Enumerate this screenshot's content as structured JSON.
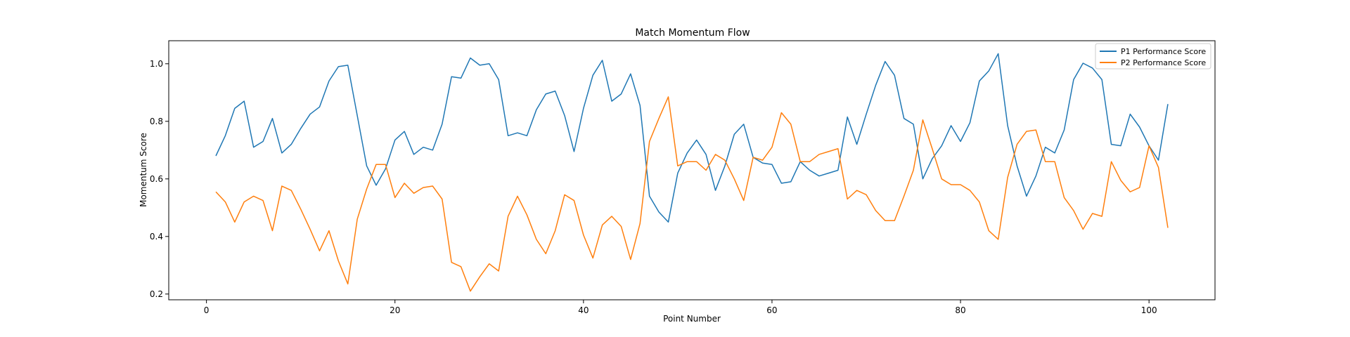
{
  "chart_data": {
    "type": "line",
    "title": "Match Momentum Flow",
    "xlabel": "Point Number",
    "ylabel": "Momentum Score",
    "xlim": [
      -4,
      107
    ],
    "ylim": [
      0.18,
      1.08
    ],
    "xticks": [
      0,
      20,
      40,
      60,
      80,
      100
    ],
    "yticks": [
      0.2,
      0.4,
      0.6,
      0.8,
      1.0
    ],
    "ytick_labels": [
      "0.2",
      "0.4",
      "0.6",
      "0.8",
      "1.0"
    ],
    "grid": false,
    "legend_position": "top-right",
    "x": [
      1,
      2,
      3,
      4,
      5,
      6,
      7,
      8,
      9,
      10,
      11,
      12,
      13,
      14,
      15,
      16,
      17,
      18,
      19,
      20,
      21,
      22,
      23,
      24,
      25,
      26,
      27,
      28,
      29,
      30,
      31,
      32,
      33,
      34,
      35,
      36,
      37,
      38,
      39,
      40,
      41,
      42,
      43,
      44,
      45,
      46,
      47,
      48,
      49,
      50,
      51,
      52,
      53,
      54,
      55,
      56,
      57,
      58,
      59,
      60,
      61,
      62,
      63,
      64,
      65,
      66,
      67,
      68,
      69,
      70,
      71,
      72,
      73,
      74,
      75,
      76,
      77,
      78,
      79,
      80,
      81,
      82,
      83,
      84,
      85,
      86,
      87,
      88,
      89,
      90,
      91,
      92,
      93,
      94,
      95,
      96,
      97,
      98,
      99,
      100,
      101,
      102
    ],
    "series": [
      {
        "name": "P1 Performance Score",
        "color": "#1f77b4",
        "values": [
          0.68,
          0.75,
          0.845,
          0.87,
          0.71,
          0.73,
          0.81,
          0.69,
          0.72,
          0.775,
          0.825,
          0.85,
          0.94,
          0.99,
          0.995,
          0.82,
          0.645,
          0.578,
          0.635,
          0.735,
          0.765,
          0.685,
          0.71,
          0.7,
          0.79,
          0.955,
          0.95,
          1.02,
          0.995,
          1.0,
          0.945,
          0.75,
          0.76,
          0.75,
          0.84,
          0.895,
          0.905,
          0.82,
          0.695,
          0.845,
          0.96,
          1.012,
          0.87,
          0.895,
          0.965,
          0.855,
          0.54,
          0.485,
          0.45,
          0.62,
          0.69,
          0.735,
          0.685,
          0.56,
          0.645,
          0.755,
          0.79,
          0.675,
          0.655,
          0.65,
          0.585,
          0.59,
          0.66,
          0.63,
          0.61,
          0.62,
          0.63,
          0.815,
          0.72,
          0.825,
          0.925,
          1.008,
          0.96,
          0.81,
          0.79,
          0.6,
          0.67,
          0.715,
          0.785,
          0.73,
          0.795,
          0.94,
          0.975,
          1.035,
          0.785,
          0.645,
          0.54,
          0.61,
          0.71,
          0.69,
          0.77,
          0.945,
          1.002,
          0.985,
          0.945,
          0.72,
          0.715,
          0.825,
          0.78,
          0.715,
          0.665,
          0.86
        ]
      },
      {
        "name": "P2 Performance Score",
        "color": "#ff7f0e",
        "values": [
          0.555,
          0.52,
          0.45,
          0.52,
          0.54,
          0.525,
          0.42,
          0.575,
          0.56,
          0.495,
          0.425,
          0.35,
          0.42,
          0.315,
          0.235,
          0.46,
          0.565,
          0.65,
          0.65,
          0.535,
          0.585,
          0.55,
          0.57,
          0.575,
          0.53,
          0.31,
          0.295,
          0.21,
          0.26,
          0.305,
          0.28,
          0.47,
          0.54,
          0.475,
          0.39,
          0.34,
          0.42,
          0.545,
          0.525,
          0.405,
          0.325,
          0.44,
          0.47,
          0.435,
          0.32,
          0.445,
          0.73,
          0.81,
          0.885,
          0.645,
          0.66,
          0.66,
          0.63,
          0.685,
          0.665,
          0.6,
          0.525,
          0.675,
          0.665,
          0.71,
          0.83,
          0.79,
          0.66,
          0.66,
          0.685,
          0.695,
          0.705,
          0.53,
          0.56,
          0.545,
          0.49,
          0.455,
          0.455,
          0.54,
          0.63,
          0.805,
          0.705,
          0.6,
          0.58,
          0.58,
          0.56,
          0.52,
          0.42,
          0.39,
          0.605,
          0.72,
          0.765,
          0.77,
          0.66,
          0.66,
          0.535,
          0.49,
          0.425,
          0.48,
          0.47,
          0.66,
          0.595,
          0.555,
          0.57,
          0.715,
          0.64,
          0.43
        ]
      }
    ]
  }
}
